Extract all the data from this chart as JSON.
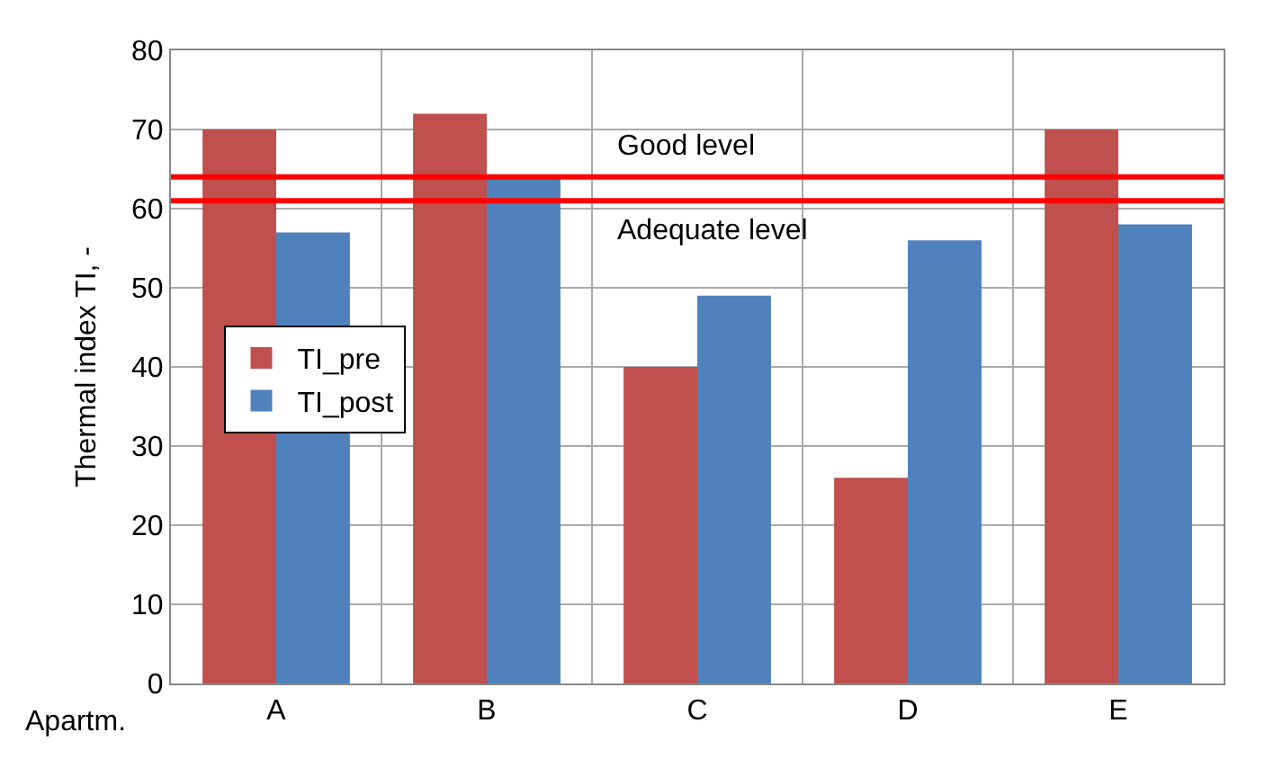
{
  "chart_data": {
    "type": "bar",
    "xlabel": "Apartm.",
    "ylabel": "Thermal index TI, -",
    "categories": [
      "A",
      "B",
      "C",
      "D",
      "E"
    ],
    "series": [
      {
        "name": "TI_pre",
        "color": "#c0504d",
        "values": [
          70,
          72,
          40,
          26,
          70
        ]
      },
      {
        "name": "TI_post",
        "color": "#4f81bd",
        "values": [
          57,
          64,
          49,
          56,
          58
        ]
      }
    ],
    "ylim": [
      0,
      80
    ],
    "yticks": [
      0,
      10,
      20,
      30,
      40,
      50,
      60,
      70,
      80
    ],
    "grid": true,
    "legend": "left",
    "ref_lines": [
      {
        "axis": "y",
        "value": 64,
        "label": "Good level",
        "color": "#ff0000"
      },
      {
        "axis": "y",
        "value": 61,
        "label": "Adequate level",
        "color": "#ff0000"
      }
    ]
  }
}
